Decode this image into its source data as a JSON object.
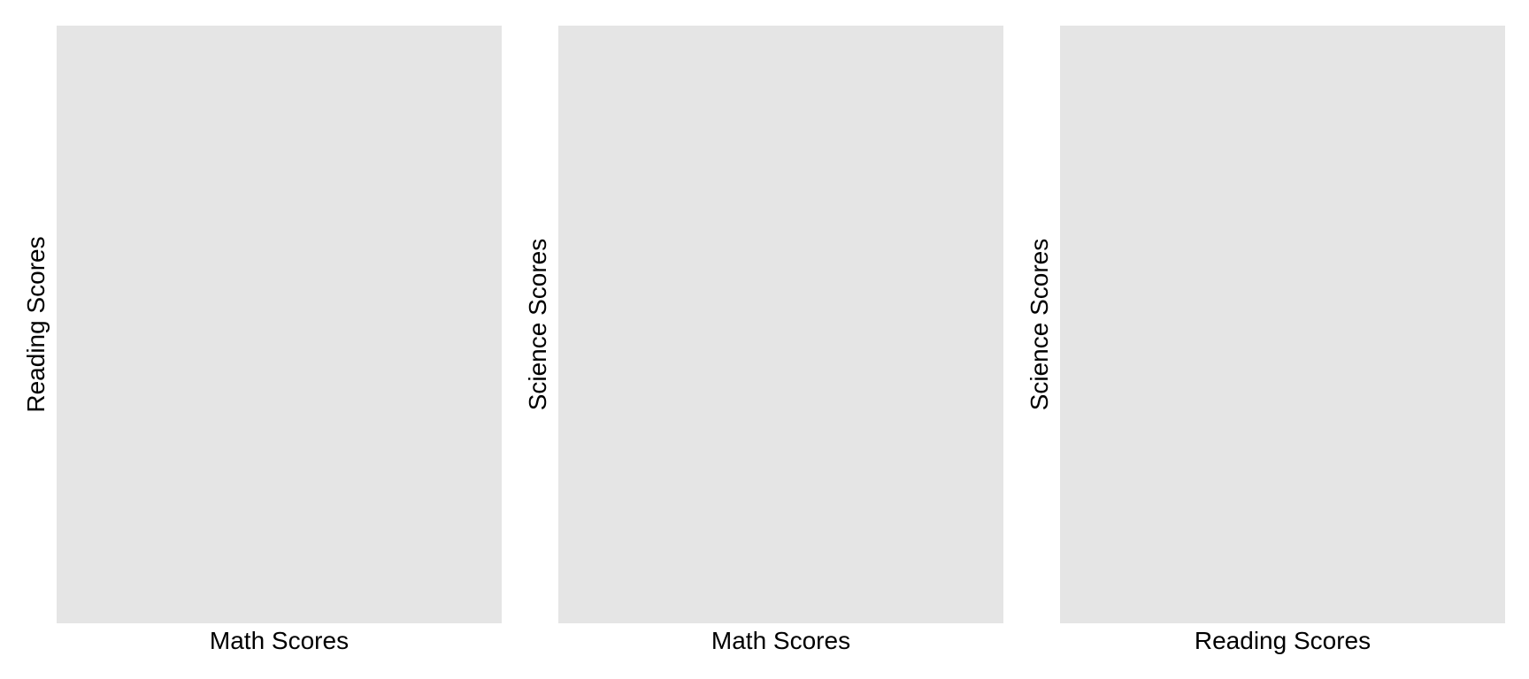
{
  "chart_data": [
    {
      "type": "scatter",
      "title": "",
      "xlabel": "Math Scores",
      "ylabel": "Reading Scores",
      "series": [],
      "grid": false,
      "panel_background": "#e5e5e5"
    },
    {
      "type": "scatter",
      "title": "",
      "xlabel": "Math Scores",
      "ylabel": "Science Scores",
      "series": [],
      "grid": false,
      "panel_background": "#e5e5e5"
    },
    {
      "type": "scatter",
      "title": "",
      "xlabel": "Reading Scores",
      "ylabel": "Science Scores",
      "series": [],
      "grid": false,
      "panel_background": "#e5e5e5"
    }
  ]
}
